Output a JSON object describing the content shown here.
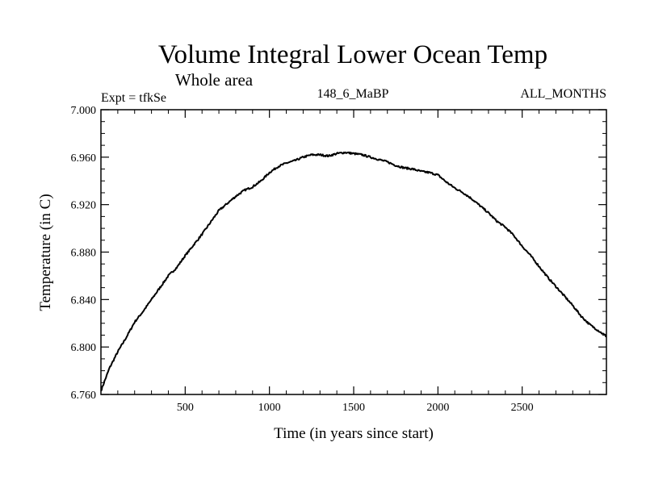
{
  "chart_data": {
    "type": "line",
    "title": "Volume Integral Lower Ocean Temp",
    "subtitle": "Whole area",
    "experiment_label": "Expt = tfkSe",
    "period_label": "148_6_MaBP",
    "months_label": "ALL_MONTHS",
    "xlabel": "Time (in years since start)",
    "ylabel": "Temperature (in C)",
    "xlim": [
      0,
      3000
    ],
    "ylim": [
      6.76,
      7.0
    ],
    "x_ticks": [
      500,
      1000,
      1500,
      2000,
      2500
    ],
    "x_tick_labels": [
      "500",
      "1000",
      "1500",
      "2000",
      "2500"
    ],
    "y_ticks": [
      6.76,
      6.8,
      6.84,
      6.88,
      6.92,
      6.96,
      7.0
    ],
    "y_tick_labels": [
      "6.760",
      "6.800",
      "6.840",
      "6.880",
      "6.920",
      "6.960",
      "7.000"
    ],
    "line_color": "#000000",
    "series": [
      {
        "name": "Temperature",
        "x": [
          0,
          50,
          100,
          150,
          200,
          250,
          300,
          350,
          400,
          450,
          500,
          550,
          600,
          650,
          700,
          750,
          800,
          850,
          900,
          950,
          1000,
          1050,
          1100,
          1150,
          1200,
          1250,
          1300,
          1350,
          1400,
          1450,
          1500,
          1550,
          1600,
          1650,
          1700,
          1750,
          1800,
          1850,
          1900,
          1950,
          2000,
          2050,
          2100,
          2150,
          2200,
          2250,
          2300,
          2350,
          2400,
          2450,
          2500,
          2550,
          2600,
          2650,
          2700,
          2750,
          2800,
          2850,
          2900,
          2950,
          3000
        ],
        "values": [
          6.763,
          6.782,
          6.796,
          6.808,
          6.821,
          6.83,
          6.84,
          6.85,
          6.86,
          6.867,
          6.877,
          6.886,
          6.895,
          6.905,
          6.915,
          6.921,
          6.927,
          6.932,
          6.935,
          6.94,
          6.947,
          6.952,
          6.955,
          6.957,
          6.96,
          6.962,
          6.962,
          6.961,
          6.963,
          6.964,
          6.963,
          6.962,
          6.96,
          6.958,
          6.956,
          6.953,
          6.951,
          6.95,
          6.948,
          6.947,
          6.945,
          6.939,
          6.934,
          6.93,
          6.925,
          6.919,
          6.913,
          6.906,
          6.901,
          6.894,
          6.885,
          6.877,
          6.868,
          6.859,
          6.851,
          6.843,
          6.835,
          6.826,
          6.819,
          6.814,
          6.809
        ]
      }
    ]
  }
}
